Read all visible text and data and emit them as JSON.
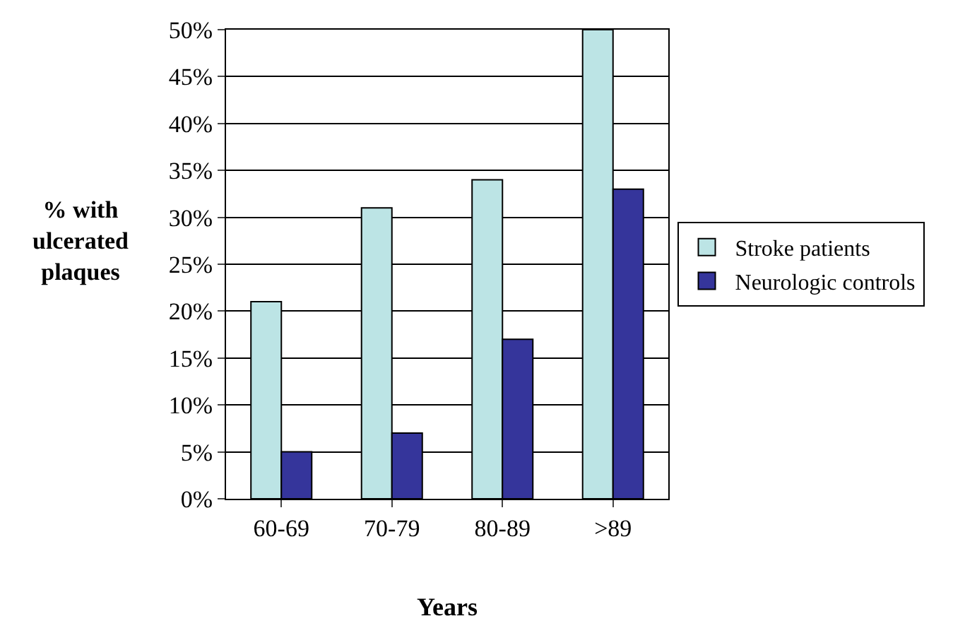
{
  "chart_data": {
    "type": "bar",
    "xlabel": "Years",
    "ylabel": "% with\nulcerated\nplaques",
    "categories": [
      "60-69",
      "70-79",
      "80-89",
      ">89"
    ],
    "series": [
      {
        "name": "Stroke patients",
        "color": "#bce4e5",
        "values": [
          21,
          31,
          34,
          50
        ]
      },
      {
        "name": "Neurologic controls",
        "color": "#35359b",
        "values": [
          5,
          7,
          17,
          33
        ]
      }
    ],
    "ylim": [
      0,
      50
    ],
    "yticks": [
      {
        "value": 0,
        "label": "0%"
      },
      {
        "value": 5,
        "label": "5%"
      },
      {
        "value": 10,
        "label": "10%"
      },
      {
        "value": 15,
        "label": "15%"
      },
      {
        "value": 20,
        "label": "20%"
      },
      {
        "value": 25,
        "label": "25%"
      },
      {
        "value": 30,
        "label": "30%"
      },
      {
        "value": 35,
        "label": "35%"
      },
      {
        "value": 40,
        "label": "40%"
      },
      {
        "value": 45,
        "label": "45%"
      },
      {
        "value": 50,
        "label": "50%"
      }
    ],
    "grid": "y",
    "legend": "right"
  }
}
